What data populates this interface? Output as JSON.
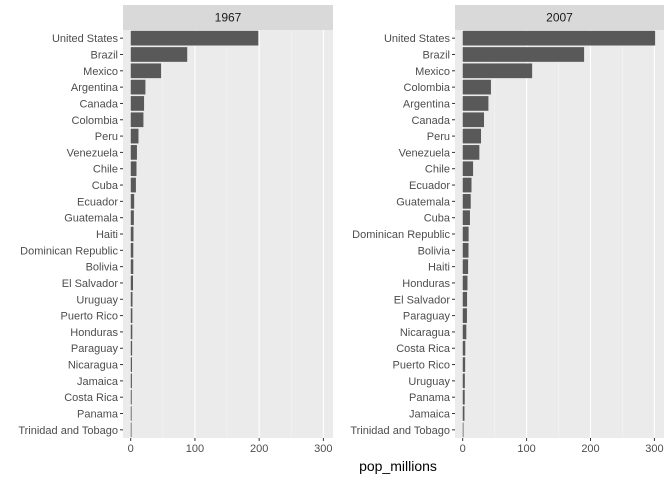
{
  "chart_data": {
    "type": "bar",
    "orientation": "horizontal",
    "xlabel": "pop_millions",
    "ylabel": "",
    "grid": true,
    "xlim": [
      -12,
      315
    ],
    "x_ticks": [
      0,
      100,
      200,
      300
    ],
    "colors": {
      "bar": "#595959",
      "panel": "#ebebeb",
      "strip": "#d9d9d9",
      "grid_major": "#ffffff",
      "grid_minor": "#f4f4f4"
    },
    "panels": [
      {
        "label": "1967",
        "categories": [
          "United States",
          "Brazil",
          "Mexico",
          "Argentina",
          "Canada",
          "Colombia",
          "Peru",
          "Venezuela",
          "Chile",
          "Cuba",
          "Ecuador",
          "Guatemala",
          "Haiti",
          "Dominican Republic",
          "Bolivia",
          "El Salvador",
          "Uruguay",
          "Puerto Rico",
          "Honduras",
          "Paraguay",
          "Nicaragua",
          "Jamaica",
          "Costa Rica",
          "Panama",
          "Trinidad and Tobago"
        ],
        "values": [
          198.7,
          88.0,
          47.3,
          22.9,
          20.8,
          19.8,
          12.1,
          9.7,
          9.0,
          8.1,
          5.4,
          4.9,
          4.3,
          4.0,
          4.0,
          3.6,
          2.8,
          2.6,
          2.5,
          2.2,
          2.0,
          1.9,
          1.6,
          1.4,
          1.0
        ]
      },
      {
        "label": "2007",
        "categories": [
          "United States",
          "Brazil",
          "Mexico",
          "Colombia",
          "Argentina",
          "Canada",
          "Peru",
          "Venezuela",
          "Chile",
          "Ecuador",
          "Guatemala",
          "Cuba",
          "Dominican Republic",
          "Bolivia",
          "Haiti",
          "Honduras",
          "El Salvador",
          "Paraguay",
          "Nicaragua",
          "Costa Rica",
          "Puerto Rico",
          "Uruguay",
          "Panama",
          "Jamaica",
          "Trinidad and Tobago"
        ],
        "values": [
          301.1,
          190.0,
          108.7,
          44.2,
          40.3,
          33.4,
          28.7,
          26.1,
          16.3,
          13.8,
          12.6,
          11.4,
          9.3,
          9.1,
          8.5,
          7.5,
          6.9,
          6.7,
          5.7,
          4.1,
          3.9,
          3.4,
          3.2,
          2.8,
          1.1
        ]
      }
    ]
  }
}
